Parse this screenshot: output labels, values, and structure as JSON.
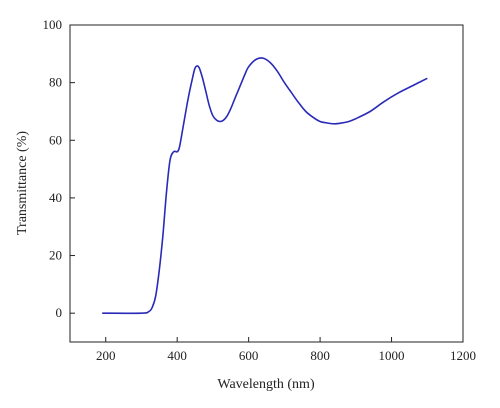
{
  "chart_data": {
    "type": "line",
    "xlabel": "Wavelength (nm)",
    "ylabel": "Transmittance (%)",
    "xlim": [
      100,
      1200
    ],
    "ylim": [
      -10,
      100
    ],
    "xticks": [
      200,
      400,
      600,
      800,
      1000,
      1200
    ],
    "yticks": [
      0,
      20,
      40,
      60,
      80,
      100
    ],
    "grid": false,
    "legend": "none",
    "series": [
      {
        "color": "#2a2ab8",
        "x": [
          190,
          300,
          320,
          330,
          340,
          350,
          360,
          370,
          380,
          390,
          400,
          405,
          410,
          420,
          430,
          440,
          450,
          460,
          470,
          480,
          490,
          500,
          510,
          520,
          530,
          540,
          550,
          560,
          570,
          580,
          590,
          600,
          620,
          640,
          660,
          680,
          700,
          720,
          740,
          760,
          780,
          800,
          820,
          840,
          860,
          880,
          900,
          940,
          980,
          1020,
          1060,
          1100
        ],
        "y": [
          0,
          0,
          0.5,
          2,
          6,
          15,
          27,
          42,
          53,
          56,
          56,
          57,
          60,
          67,
          74,
          80,
          85,
          85.5,
          82,
          77,
          72,
          68.5,
          67,
          66.5,
          67,
          68.5,
          71,
          74,
          77,
          80,
          83,
          85.5,
          88,
          88.5,
          87,
          84,
          80,
          76.5,
          73,
          70,
          68,
          66.5,
          66,
          65.7,
          66,
          66.5,
          67.5,
          70,
          73.5,
          76.5,
          79,
          81.5
        ]
      }
    ]
  }
}
